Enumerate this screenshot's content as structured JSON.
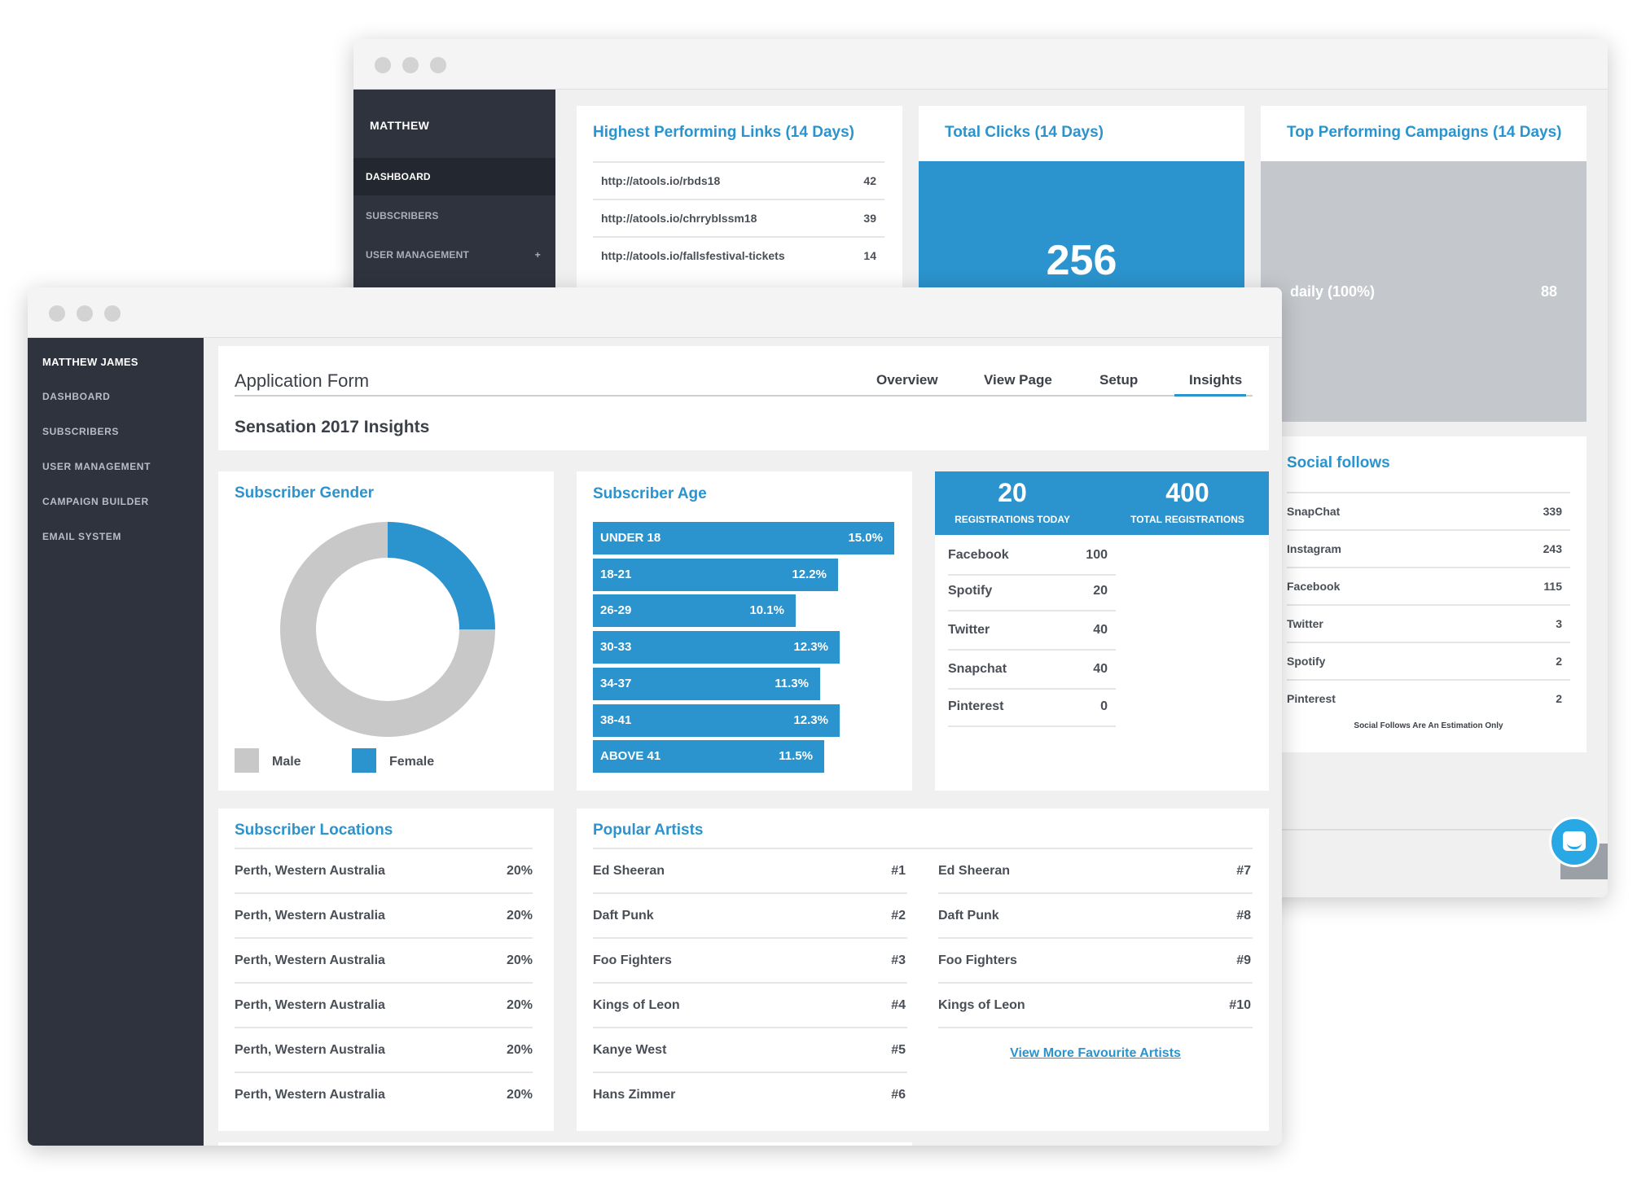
{
  "back_window": {
    "sidebar": {
      "brand": "MATTHEW",
      "items": [
        {
          "label": "DASHBOARD",
          "active": true
        },
        {
          "label": "SUBSCRIBERS",
          "active": false
        },
        {
          "label": "USER MANAGEMENT",
          "active": false,
          "expand": "+"
        }
      ]
    },
    "links_card": {
      "title": "Highest Performing Links (14 Days)",
      "rows": [
        {
          "url": "http://atools.io/rbds18",
          "count": "42"
        },
        {
          "url": "http://atools.io/chrryblssm18",
          "count": "39"
        },
        {
          "url": "http://atools.io/fallsfestival-tickets",
          "count": "14"
        }
      ]
    },
    "clicks_card": {
      "title": "Total Clicks (14 Days)",
      "value": "256"
    },
    "campaigns_card": {
      "title": "Top Performing Campaigns (14 Days)",
      "label": "daily (100%)",
      "value": "88"
    },
    "social_card": {
      "title": "Social follows",
      "rows": [
        {
          "name": "SnapChat",
          "value": "339"
        },
        {
          "name": "Instagram",
          "value": "243"
        },
        {
          "name": "Facebook",
          "value": "115"
        },
        {
          "name": "Twitter",
          "value": "3"
        },
        {
          "name": "Spotify",
          "value": "2"
        },
        {
          "name": "Pinterest",
          "value": "2"
        }
      ],
      "footnote": "Social Follows Are An Estimation Only"
    }
  },
  "front_window": {
    "sidebar": {
      "brand": "MATTHEW JAMES",
      "items": [
        "DASHBOARD",
        "SUBSCRIBERS",
        "USER MANAGEMENT",
        "CAMPAIGN BUILDER",
        "EMAIL SYSTEM"
      ]
    },
    "header": {
      "title": "Application Form",
      "subtitle": "Sensation 2017 Insights",
      "tabs": [
        {
          "label": "Overview",
          "active": false
        },
        {
          "label": "View Page",
          "active": false
        },
        {
          "label": "Setup",
          "active": false
        },
        {
          "label": "Insights",
          "active": true
        }
      ]
    },
    "gender_card": {
      "title": "Subscriber Gender",
      "legend": [
        {
          "label": "Male",
          "color": "#c8c8c8"
        },
        {
          "label": "Female",
          "color": "#2b93cd"
        }
      ]
    },
    "age_card": {
      "title": "Subscriber Age"
    },
    "registrations_card": {
      "today_value": "20",
      "today_label": "REGISTRATIONS TODAY",
      "total_value": "400",
      "total_label": "TOTAL REGISTRATIONS",
      "rows": [
        {
          "name": "Facebook",
          "value": "100"
        },
        {
          "name": "Spotify",
          "value": "20"
        },
        {
          "name": "Twitter",
          "value": "40"
        },
        {
          "name": "Snapchat",
          "value": "40"
        },
        {
          "name": "Pinterest",
          "value": "0"
        }
      ]
    },
    "locations_card": {
      "title": "Subscriber Locations",
      "rows": [
        {
          "place": "Perth, Western Australia",
          "pct": "20%"
        },
        {
          "place": "Perth, Western Australia",
          "pct": "20%"
        },
        {
          "place": "Perth, Western Australia",
          "pct": "20%"
        },
        {
          "place": "Perth, Western Australia",
          "pct": "20%"
        },
        {
          "place": "Perth, Western Australia",
          "pct": "20%"
        },
        {
          "place": "Perth, Western Australia",
          "pct": "20%"
        }
      ]
    },
    "artists_card": {
      "title": "Popular Artists",
      "left": [
        {
          "name": "Ed Sheeran",
          "rank": "#1"
        },
        {
          "name": "Daft Punk",
          "rank": "#2"
        },
        {
          "name": "Foo Fighters",
          "rank": "#3"
        },
        {
          "name": "Kings of Leon",
          "rank": "#4"
        },
        {
          "name": "Kanye West",
          "rank": "#5"
        },
        {
          "name": "Hans Zimmer",
          "rank": "#6"
        }
      ],
      "right": [
        {
          "name": "Ed Sheeran",
          "rank": "#7"
        },
        {
          "name": "Daft Punk",
          "rank": "#8"
        },
        {
          "name": "Foo Fighters",
          "rank": "#9"
        },
        {
          "name": "Kings of Leon",
          "rank": "#10"
        }
      ],
      "more_link": "View More Favourite Artists"
    }
  },
  "chart_data": [
    {
      "type": "pie",
      "categories": [
        "Male",
        "Female"
      ],
      "values": [
        75,
        25
      ],
      "colors": [
        "#c8c8c8",
        "#2b93cd"
      ],
      "donut": true
    },
    {
      "type": "bar",
      "orientation": "horizontal",
      "categories": [
        "UNDER 18",
        "18-21",
        "26-29",
        "30-33",
        "34-37",
        "38-41",
        "ABOVE 41"
      ],
      "values": [
        15.0,
        12.2,
        10.1,
        12.3,
        11.3,
        12.3,
        11.5
      ],
      "value_labels": [
        "15.0%",
        "12.2%",
        "10.1%",
        "12.3%",
        "11.3%",
        "12.3%",
        "11.5%"
      ],
      "color": "#2b93cd"
    }
  ]
}
